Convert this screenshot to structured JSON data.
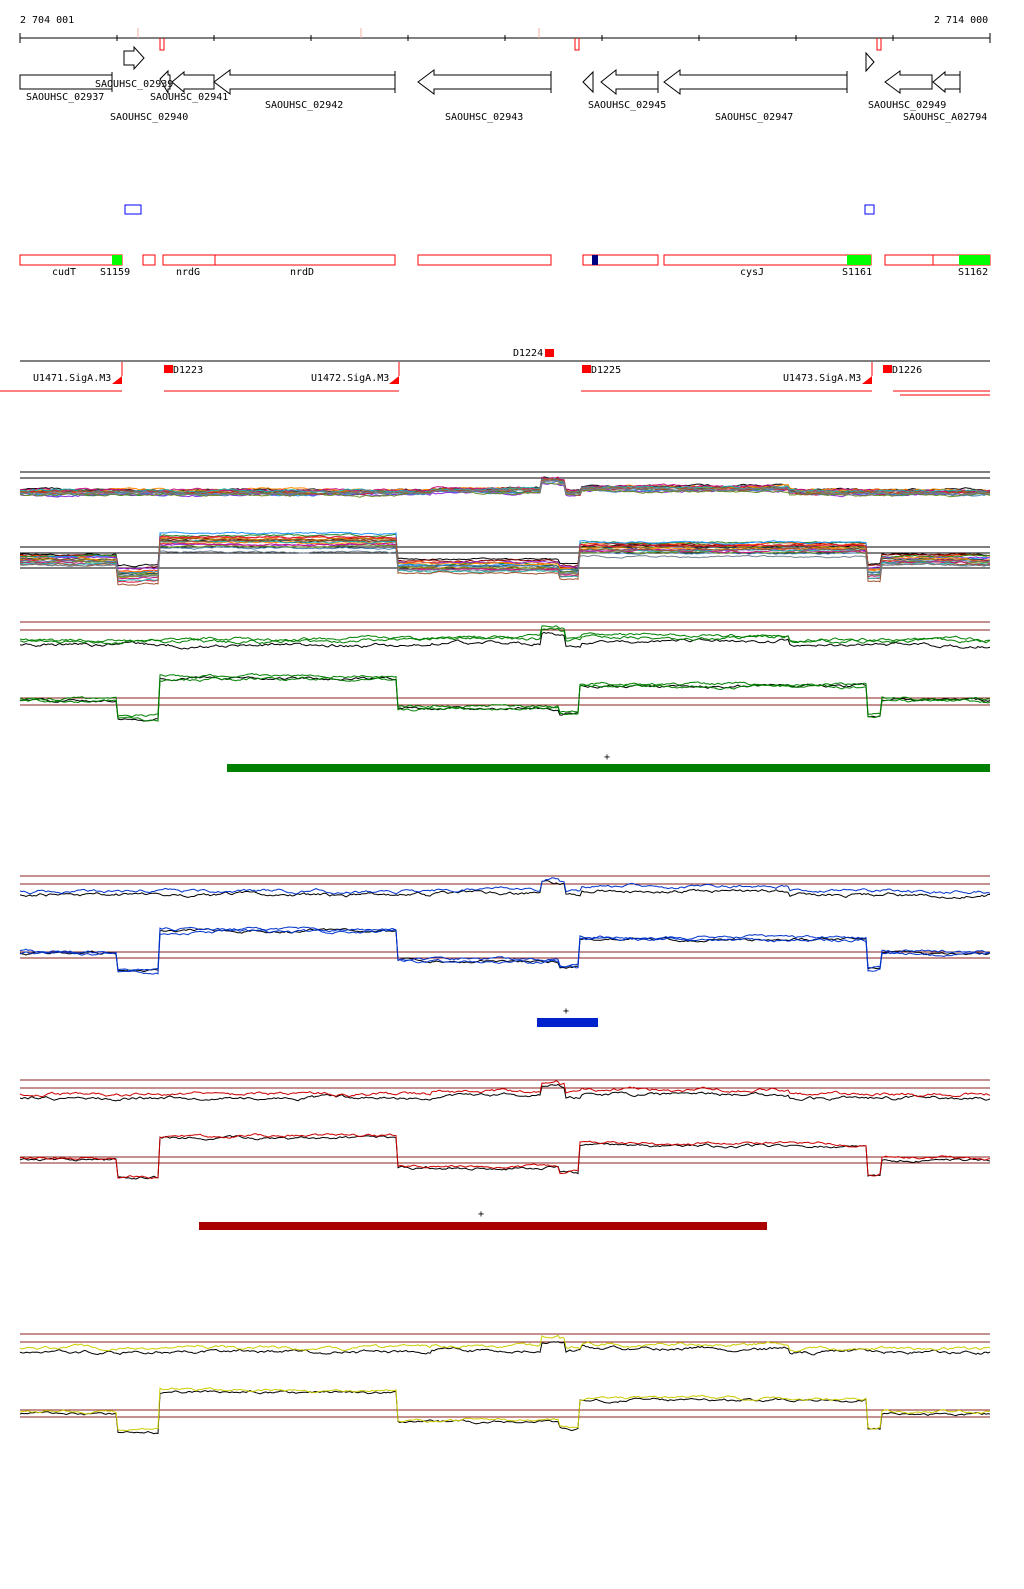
{
  "colors": {
    "outline": "#000000",
    "feature_red": "#ff0000",
    "green_box": "#00ff00",
    "blue_box": "#0000ff",
    "navy": "#000080",
    "guide_red": "#8b2020",
    "track_green": "#008000",
    "track_blue": "#0033cc",
    "track_red": "#cc0000",
    "track_yellow": "#cccc00",
    "bar_green": "#008000",
    "bar_blue": "#0022cc",
    "bar_red": "#aa0000"
  },
  "ruler": {
    "start_label": "2 704 001",
    "end_label": "2 714 000"
  },
  "genes": [
    {
      "id": "SAOUHSC_02937",
      "label": "SAOUHSC_02937"
    },
    {
      "id": "SAOUHSC_02939",
      "label": "SAOUHSC_02939"
    },
    {
      "id": "SAOUHSC_02940",
      "label": "SAOUHSC_02940"
    },
    {
      "id": "SAOUHSC_02941",
      "label": "SAOUHSC_02941"
    },
    {
      "id": "SAOUHSC_02942",
      "label": "SAOUHSC_02942"
    },
    {
      "id": "SAOUHSC_02943",
      "label": "SAOUHSC_02943"
    },
    {
      "id": "SAOUHSC_02945",
      "label": "SAOUHSC_02945"
    },
    {
      "id": "SAOUHSC_02947",
      "label": "SAOUHSC_02947"
    },
    {
      "id": "SAOUHSC_02949",
      "label": "SAOUHSC_02949"
    },
    {
      "id": "SAOUHSC_A02794",
      "label": "SAOUHSC_A02794"
    }
  ],
  "annotations": {
    "names": [
      "cudT",
      "S1159",
      "nrdG",
      "nrdD",
      "cysJ",
      "S1161",
      "S1162"
    ]
  },
  "regulatory": {
    "labels": [
      "D1224",
      "D1223",
      "D1225",
      "D1226",
      "U1471.SigA.M3",
      "U1472.SigA.M3",
      "U1473.SigA.M3"
    ]
  },
  "segments": {
    "marker": "+"
  }
}
